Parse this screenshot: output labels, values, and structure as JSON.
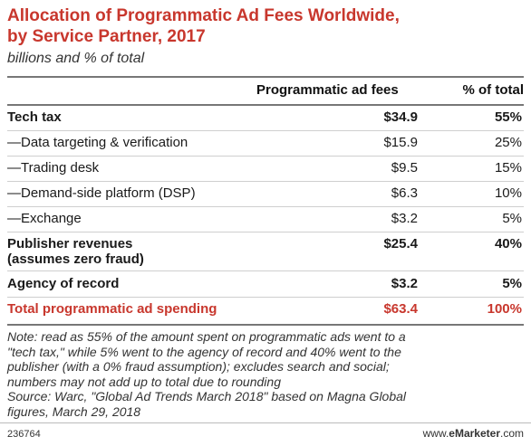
{
  "chart_data": {
    "type": "table",
    "title_line1": "Allocation of Programmatic Ad Fees Worldwide,",
    "title_line2": "by Service Partner, 2017",
    "subtitle": "billions and % of total",
    "columns": [
      "Programmatic ad fees",
      "% of total"
    ],
    "rows": [
      {
        "label": "Tech tax",
        "fees": "$34.9",
        "pct": "55%",
        "style": "bold"
      },
      {
        "label": "—Data targeting & verification",
        "fees": "$15.9",
        "pct": "25%",
        "style": "normal"
      },
      {
        "label": "—Trading desk",
        "fees": "$9.5",
        "pct": "15%",
        "style": "normal"
      },
      {
        "label": "—Demand-side platform (DSP)",
        "fees": "$6.3",
        "pct": "10%",
        "style": "normal"
      },
      {
        "label": "—Exchange",
        "fees": "$3.2",
        "pct": "5%",
        "style": "normal"
      },
      {
        "label": "Publisher revenues",
        "label2": "(assumes zero fraud)",
        "fees": "$25.4",
        "pct": "40%",
        "style": "bold"
      },
      {
        "label": "Agency of record",
        "fees": "$3.2",
        "pct": "5%",
        "style": "bold"
      },
      {
        "label": "Total programmatic ad spending",
        "fees": "$63.4",
        "pct": "100%",
        "style": "total"
      }
    ]
  },
  "note": {
    "line1": "Note: read as 55% of the amount spent on programmatic ads went to a",
    "line2": "\"tech tax,\" while 5% went to the agency of record and 40% went to the",
    "line3": "publisher (with a 0% fraud assumption); excludes search and social;",
    "line4": "numbers may not add up to total due to rounding",
    "line5": "Source: Warc, \"Global Ad Trends March 2018\" based on Magna Global",
    "line6": "figures, March 29, 2018"
  },
  "footer": {
    "chart_id": "236764",
    "brand_prefix": "www.",
    "brand_name": "eMarketer",
    "brand_suffix": ".com"
  }
}
